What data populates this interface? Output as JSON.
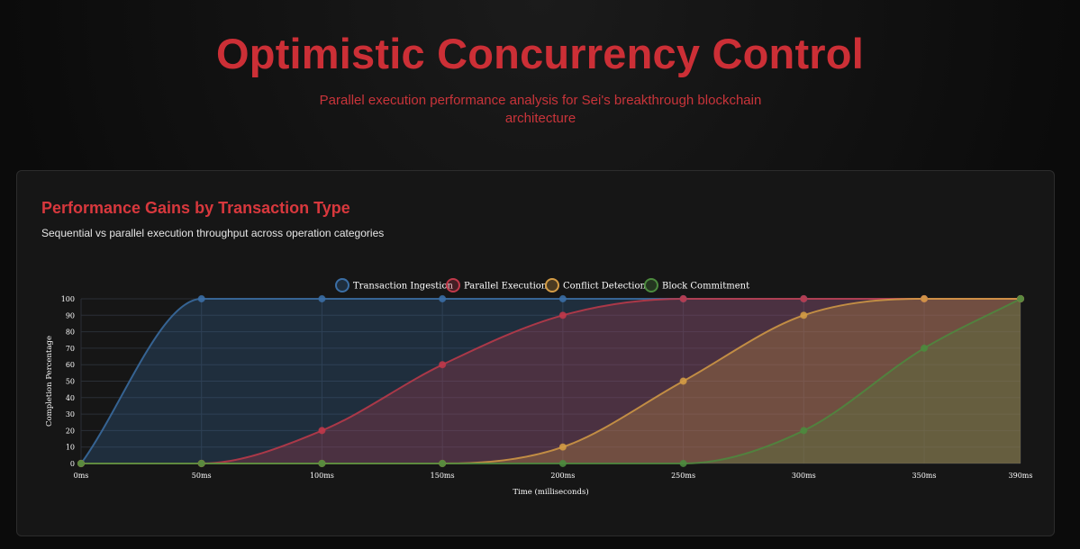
{
  "header": {
    "title": "Optimistic Concurrency Control",
    "subtitle": "Parallel execution performance analysis for Sei's breakthrough blockchain architecture"
  },
  "card": {
    "title": "Performance Gains by Transaction Type",
    "subtitle": "Sequential vs parallel execution throughput across operation categories"
  },
  "chart_data": {
    "type": "area",
    "xlabel": "Time (milliseconds)",
    "ylabel": "Completion Percentage",
    "x": [
      0,
      50,
      100,
      150,
      200,
      250,
      300,
      350,
      390
    ],
    "x_tick_labels": [
      "0ms",
      "50ms",
      "100ms",
      "150ms",
      "200ms",
      "250ms",
      "300ms",
      "350ms",
      "390ms"
    ],
    "xlim": [
      0,
      390
    ],
    "ylim": [
      0,
      100
    ],
    "y_ticks": [
      0,
      10,
      20,
      30,
      40,
      50,
      60,
      70,
      80,
      90,
      100
    ],
    "grid": true,
    "legend_position": "top-center",
    "series": [
      {
        "name": "Transaction Ingestion",
        "values": [
          0,
          100,
          100,
          100,
          100,
          100,
          100,
          100,
          100
        ],
        "color": "#3b6ea5"
      },
      {
        "name": "Parallel Execution",
        "values": [
          0,
          0,
          20,
          60,
          90,
          100,
          100,
          100,
          100
        ],
        "color": "#c0394a"
      },
      {
        "name": "Conflict Detection",
        "values": [
          0,
          0,
          0,
          0,
          10,
          50,
          90,
          100,
          100
        ],
        "color": "#d39b45"
      },
      {
        "name": "Block Commitment",
        "values": [
          0,
          0,
          0,
          0,
          0,
          0,
          20,
          70,
          100
        ],
        "color": "#4c8a3e"
      }
    ]
  }
}
